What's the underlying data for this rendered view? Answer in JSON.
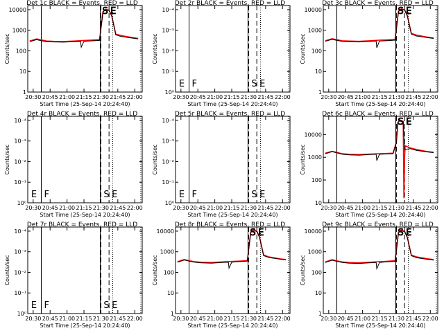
{
  "figure": {
    "ylabel": "Counts/sec",
    "xlabel": "Start Time (25-Sep-14 20:24:40)",
    "series_colors": {
      "events": "#000000",
      "lld": "#ff0000"
    }
  },
  "x_ticks": [
    "20:30",
    "20:45",
    "21:00",
    "21:15",
    "21:30",
    "21:45",
    "22:00"
  ],
  "chart_data": [
    {
      "type": "line",
      "title": "Det 1c BLACK = Events, RED = LLD",
      "scale": "log",
      "ytick_labels": [
        "1",
        "10",
        "100",
        "1000",
        "10000"
      ],
      "ylim": [
        0,
        4.2
      ],
      "xlim": [
        20.42,
        22.11
      ],
      "vlines_solid": [
        20.62,
        21.49
      ],
      "vlines_dashed": [
        21.5,
        21.62
      ],
      "vlines_dotted": [
        21.675
      ],
      "markers": [
        {
          "label": "S",
          "x": 21.5
        },
        {
          "label": "E",
          "x": 21.62
        }
      ],
      "series": [
        {
          "color": "red",
          "x": [
            20.45,
            20.55,
            20.62,
            20.7,
            20.8,
            20.95,
            21.1,
            21.25,
            21.35,
            21.48,
            21.53,
            21.57,
            21.62,
            21.66,
            21.72,
            21.8,
            21.95,
            22.05
          ],
          "y": [
            300,
            380,
            340,
            300,
            290,
            285,
            300,
            320,
            330,
            350,
            8000,
            10500,
            9500,
            5000,
            650,
            550,
            450,
            400
          ]
        },
        {
          "color": "black",
          "x": [
            20.45,
            20.55,
            20.62,
            20.7,
            20.8,
            20.95,
            21.1,
            21.2,
            21.21,
            21.25,
            21.35,
            21.48,
            21.53,
            21.57,
            21.62,
            21.66,
            21.72,
            21.8,
            21.95,
            22.05
          ],
          "y": [
            280,
            350,
            310,
            280,
            270,
            265,
            280,
            290,
            150,
            290,
            305,
            320,
            7600,
            10000,
            9000,
            4800,
            600,
            500,
            420,
            380
          ]
        }
      ]
    },
    {
      "type": "line",
      "title": "Det 2r BLACK = Events, RED = LLD",
      "scale": "log",
      "ytick_labels": [
        "10⁰",
        "10⁻¹",
        "10⁻²",
        "10⁻³",
        "10⁻⁴"
      ],
      "ylim": [
        0,
        4.2
      ],
      "xlim": [
        20.42,
        22.11
      ],
      "vlines_solid": [
        20.62,
        21.49
      ],
      "vlines_dashed": [
        21.5,
        21.62
      ],
      "vlines_dotted": [
        21.675
      ],
      "markers": [
        {
          "label": "E",
          "x": 20.45
        },
        {
          "label": "F",
          "x": 20.64
        },
        {
          "label": "S",
          "x": 21.52
        },
        {
          "label": "E",
          "x": 21.64
        }
      ],
      "series": []
    },
    {
      "type": "line",
      "title": "Det 3c BLACK = Events, RED = LLD",
      "scale": "log",
      "ytick_labels": [
        "1",
        "10",
        "100",
        "1000",
        "10000"
      ],
      "ylim": [
        0,
        4.2
      ],
      "xlim": [
        20.42,
        22.11
      ],
      "vlines_solid": [
        20.62,
        21.49
      ],
      "vlines_dashed": [
        21.5,
        21.62
      ],
      "vlines_dotted": [
        21.675
      ],
      "markers": [
        {
          "label": "S",
          "x": 21.5
        },
        {
          "label": "E",
          "x": 21.62
        }
      ],
      "series": [
        {
          "color": "red",
          "x": [
            20.45,
            20.55,
            20.62,
            20.7,
            20.8,
            20.95,
            21.1,
            21.25,
            21.35,
            21.48,
            21.53,
            21.57,
            21.62,
            21.66,
            21.72,
            21.8,
            21.95,
            22.05
          ],
          "y": [
            310,
            390,
            350,
            310,
            300,
            290,
            310,
            330,
            340,
            360,
            8500,
            11000,
            10000,
            5200,
            700,
            580,
            470,
            420
          ]
        },
        {
          "color": "black",
          "x": [
            20.45,
            20.55,
            20.62,
            20.7,
            20.8,
            20.95,
            21.1,
            21.2,
            21.21,
            21.25,
            21.35,
            21.48,
            21.53,
            21.57,
            21.62,
            21.66,
            21.72,
            21.8,
            21.95,
            22.05
          ],
          "y": [
            290,
            360,
            320,
            290,
            280,
            270,
            290,
            300,
            140,
            300,
            310,
            330,
            8000,
            10500,
            9500,
            5000,
            650,
            520,
            440,
            400
          ]
        }
      ]
    },
    {
      "type": "line",
      "title": "Det 4r BLACK = Events, RED = LLD",
      "scale": "log",
      "ytick_labels": [
        "10⁰",
        "10⁻¹",
        "10⁻²",
        "10⁻³",
        "10⁻⁴"
      ],
      "ylim": [
        0,
        4.2
      ],
      "xlim": [
        20.42,
        22.11
      ],
      "vlines_solid": [
        20.62,
        21.49
      ],
      "vlines_dashed": [
        21.5,
        21.62
      ],
      "vlines_dotted": [
        21.675
      ],
      "markers": [
        {
          "label": "E",
          "x": 20.45
        },
        {
          "label": "F",
          "x": 20.64
        },
        {
          "label": "S",
          "x": 21.52
        },
        {
          "label": "E",
          "x": 21.64
        }
      ],
      "series": []
    },
    {
      "type": "line",
      "title": "Det 5r BLACK = Events, RED = LLD",
      "scale": "log",
      "ytick_labels": [
        "10⁰",
        "10⁻¹",
        "10⁻²",
        "10⁻³",
        "10⁻⁴"
      ],
      "ylim": [
        0,
        4.2
      ],
      "xlim": [
        20.42,
        22.11
      ],
      "vlines_solid": [
        20.62,
        21.49
      ],
      "vlines_dashed": [
        21.5,
        21.62
      ],
      "vlines_dotted": [
        21.675
      ],
      "markers": [
        {
          "label": "E",
          "x": 20.45
        },
        {
          "label": "F",
          "x": 20.64
        },
        {
          "label": "S",
          "x": 21.52
        },
        {
          "label": "E",
          "x": 21.64
        }
      ],
      "series": []
    },
    {
      "type": "line",
      "title": "Det 6c BLACK = Events, RED = LLD",
      "scale": "log",
      "ytick_labels": [
        "10",
        "100",
        "1000",
        "10000"
      ],
      "ylim": [
        0.4,
        4.2
      ],
      "xlim": [
        20.42,
        22.11
      ],
      "vlines_solid": [
        20.62,
        21.49
      ],
      "vlines_dashed": [
        21.5,
        21.62
      ],
      "vlines_dotted": [
        21.675
      ],
      "markers": [
        {
          "label": "S",
          "x": 21.5
        },
        {
          "label": "E",
          "x": 21.62
        }
      ],
      "series": [
        {
          "color": "red",
          "x": [
            20.45,
            20.55,
            20.62,
            20.7,
            20.8,
            20.95,
            21.1,
            21.25,
            21.35,
            21.45,
            21.5,
            21.52,
            21.55,
            21.6,
            21.61,
            21.62,
            21.63,
            21.7,
            21.8,
            21.95,
            22.05
          ],
          "y": [
            380,
            460,
            410,
            360,
            340,
            330,
            345,
            360,
            370,
            380,
            1200,
            8500,
            11000,
            9500,
            4,
            250,
            800,
            650,
            550,
            450,
            420
          ]
        },
        {
          "color": "black",
          "x": [
            20.45,
            20.55,
            20.62,
            20.7,
            20.8,
            20.95,
            21.1,
            21.2,
            21.21,
            21.25,
            21.35,
            21.45,
            21.5,
            21.52,
            21.55,
            21.6,
            21.62,
            21.7,
            21.8,
            21.95,
            22.05
          ],
          "y": [
            360,
            440,
            390,
            340,
            320,
            310,
            330,
            340,
            180,
            340,
            350,
            360,
            1100,
            8000,
            10500,
            9000,
            550,
            600,
            500,
            430,
            400
          ]
        }
      ]
    },
    {
      "type": "line",
      "title": "Det 7r BLACK = Events, RED = LLD",
      "scale": "log",
      "ytick_labels": [
        "10⁰",
        "10⁻¹",
        "10⁻²",
        "10⁻³",
        "10⁻⁴"
      ],
      "ylim": [
        0,
        4.2
      ],
      "xlim": [
        20.42,
        22.11
      ],
      "vlines_solid": [
        20.62,
        21.49
      ],
      "vlines_dashed": [
        21.5,
        21.62
      ],
      "vlines_dotted": [
        21.675
      ],
      "markers": [
        {
          "label": "E",
          "x": 20.45
        },
        {
          "label": "F",
          "x": 20.64
        },
        {
          "label": "S",
          "x": 21.52
        },
        {
          "label": "E",
          "x": 21.64
        }
      ],
      "series": []
    },
    {
      "type": "line",
      "title": "Det 8r BLACK = Events, RED = LLD",
      "scale": "log",
      "ytick_labels": [
        "1",
        "10",
        "100",
        "1000",
        "10000"
      ],
      "ylim": [
        0,
        4.2
      ],
      "xlim": [
        20.42,
        22.11
      ],
      "vlines_solid": [
        20.62,
        21.49
      ],
      "vlines_dashed": [
        21.5,
        21.62
      ],
      "vlines_dotted": [
        21.675
      ],
      "markers": [
        {
          "label": "S",
          "x": 21.5
        },
        {
          "label": "E",
          "x": 21.62
        }
      ],
      "series": [
        {
          "color": "red",
          "x": [
            20.45,
            20.55,
            20.62,
            20.7,
            20.8,
            20.95,
            21.1,
            21.25,
            21.35,
            21.48,
            21.53,
            21.57,
            21.62,
            21.66,
            21.72,
            21.8,
            21.95,
            22.05
          ],
          "y": [
            330,
            420,
            370,
            330,
            310,
            300,
            320,
            340,
            350,
            370,
            9000,
            11500,
            10000,
            5200,
            700,
            560,
            460,
            420
          ]
        },
        {
          "color": "black",
          "x": [
            20.45,
            20.55,
            20.62,
            20.7,
            20.8,
            20.95,
            21.1,
            21.2,
            21.21,
            21.25,
            21.35,
            21.48,
            21.53,
            21.57,
            21.62,
            21.66,
            21.72,
            21.8,
            21.95,
            22.05
          ],
          "y": [
            310,
            400,
            350,
            310,
            290,
            280,
            300,
            310,
            160,
            310,
            330,
            350,
            8500,
            11000,
            9500,
            5000,
            650,
            520,
            440,
            400
          ]
        }
      ]
    },
    {
      "type": "line",
      "title": "Det 9c BLACK = Events, RED = LLD",
      "scale": "log",
      "ytick_labels": [
        "1",
        "10",
        "100",
        "1000",
        "10000"
      ],
      "ylim": [
        0,
        4.2
      ],
      "xlim": [
        20.42,
        22.11
      ],
      "vlines_solid": [
        20.62,
        21.49
      ],
      "vlines_dashed": [
        21.5,
        21.62
      ],
      "vlines_dotted": [
        21.675
      ],
      "markers": [
        {
          "label": "S",
          "x": 21.5
        },
        {
          "label": "E",
          "x": 21.62
        }
      ],
      "series": [
        {
          "color": "red",
          "x": [
            20.45,
            20.55,
            20.62,
            20.7,
            20.8,
            20.95,
            21.1,
            21.25,
            21.35,
            21.48,
            21.53,
            21.57,
            21.62,
            21.66,
            21.72,
            21.8,
            21.95,
            22.05
          ],
          "y": [
            320,
            410,
            360,
            320,
            300,
            290,
            310,
            330,
            345,
            365,
            8800,
            11200,
            9800,
            5100,
            690,
            560,
            460,
            420
          ]
        },
        {
          "color": "black",
          "x": [
            20.45,
            20.55,
            20.62,
            20.7,
            20.8,
            20.95,
            21.1,
            21.2,
            21.21,
            21.25,
            21.35,
            21.48,
            21.53,
            21.57,
            21.62,
            21.66,
            21.72,
            21.8,
            21.95,
            22.05
          ],
          "y": [
            300,
            390,
            340,
            300,
            280,
            270,
            290,
            300,
            150,
            300,
            320,
            340,
            8300,
            10800,
            9300,
            4900,
            640,
            510,
            430,
            390
          ]
        }
      ]
    }
  ]
}
